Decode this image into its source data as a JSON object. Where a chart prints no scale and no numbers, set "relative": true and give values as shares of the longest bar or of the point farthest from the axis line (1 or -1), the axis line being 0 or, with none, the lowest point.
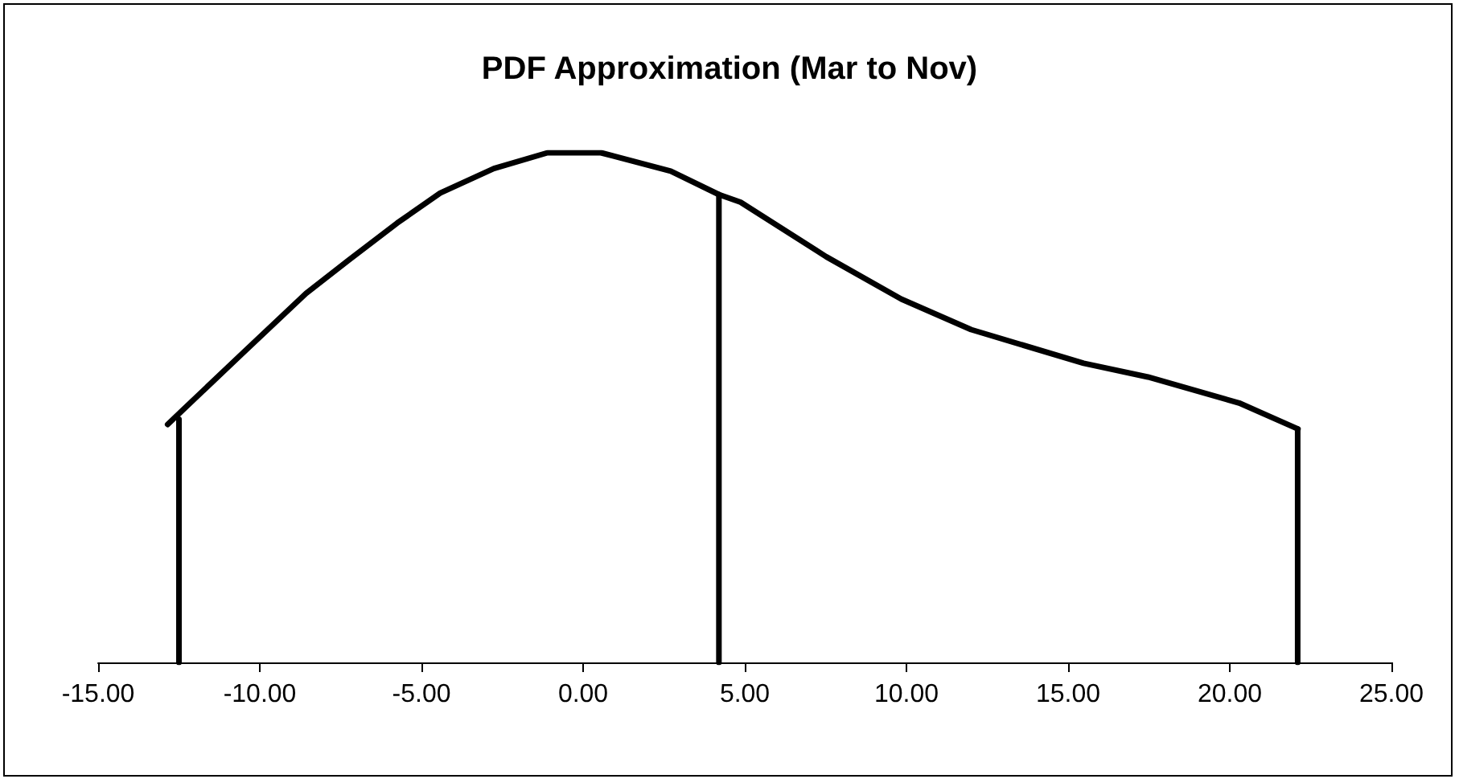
{
  "chart_data": {
    "type": "line",
    "title": "PDF Approximation (Mar to Nov)",
    "relative": true,
    "xlim": [
      -15,
      25
    ],
    "xticks": [
      {
        "value": -15,
        "label": "-15.00"
      },
      {
        "value": -10,
        "label": "-10.00"
      },
      {
        "value": -5,
        "label": "-5.00"
      },
      {
        "value": 0,
        "label": "0.00"
      },
      {
        "value": 5,
        "label": "5.00"
      },
      {
        "value": 10,
        "label": "10.00"
      },
      {
        "value": 15,
        "label": "15.00"
      },
      {
        "value": 20,
        "label": "20.00"
      },
      {
        "value": 25,
        "label": "25.00"
      }
    ],
    "series": [
      {
        "color": "#000000",
        "x": [
          -12.85,
          -10.56,
          -8.57,
          -7.24,
          -5.75,
          -4.42,
          -2.76,
          -1.1,
          0.55,
          2.71,
          4.2,
          4.87,
          7.52,
          9.84,
          12.0,
          15.48,
          17.47,
          20.29,
          22.11
        ],
        "values": [
          0.467,
          0.605,
          0.724,
          0.79,
          0.862,
          0.921,
          0.969,
          1.0,
          1.0,
          0.964,
          0.918,
          0.903,
          0.796,
          0.713,
          0.653,
          0.587,
          0.56,
          0.509,
          0.458
        ]
      },
      {
        "color": "#000000",
        "x": [
          -12.5,
          -12.5
        ],
        "values": [
          0,
          0.477
        ]
      },
      {
        "color": "#000000",
        "x": [
          4.2,
          4.2
        ],
        "values": [
          0,
          0.918
        ]
      },
      {
        "color": "#000000",
        "x": [
          22.1,
          22.1
        ],
        "values": [
          0,
          0.458
        ]
      }
    ],
    "grid": false,
    "marker": "none",
    "line_style": "solid"
  }
}
